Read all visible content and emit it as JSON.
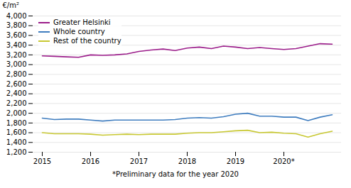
{
  "chart_data": {
    "type": "line",
    "ylabel": "€/m²",
    "annotations": [
      "*Preliminary data for the year 2020"
    ],
    "categories": [
      "2015",
      null,
      null,
      null,
      "2016",
      null,
      null,
      null,
      "2017",
      null,
      null,
      null,
      "2018",
      null,
      null,
      null,
      "2019",
      null,
      null,
      null,
      "2020*",
      null,
      null,
      null,
      null
    ],
    "series": [
      {
        "name": "Greater Helsinki",
        "color": "#9B1D8A",
        "values": [
          3180,
          3170,
          3160,
          3150,
          3200,
          3190,
          3200,
          3220,
          3270,
          3300,
          3320,
          3290,
          3340,
          3360,
          3330,
          3380,
          3360,
          3330,
          3350,
          3330,
          3310,
          3330,
          3380,
          3430,
          3420
        ]
      },
      {
        "name": "Whole country",
        "color": "#3F7DBF",
        "values": [
          1900,
          1870,
          1880,
          1880,
          1860,
          1840,
          1860,
          1860,
          1860,
          1860,
          1860,
          1870,
          1900,
          1910,
          1900,
          1930,
          1980,
          2000,
          1940,
          1940,
          1920,
          1920,
          1850,
          1920,
          1970
        ]
      },
      {
        "name": "Rest of the country",
        "color": "#C8C832",
        "values": [
          1600,
          1580,
          1580,
          1580,
          1570,
          1550,
          1560,
          1570,
          1560,
          1570,
          1570,
          1570,
          1590,
          1600,
          1600,
          1620,
          1640,
          1650,
          1600,
          1610,
          1590,
          1580,
          1510,
          1580,
          1630
        ]
      }
    ],
    "ylim": [
      1200,
      4000
    ],
    "yticks": [
      1200,
      1400,
      1600,
      1800,
      2000,
      2200,
      2400,
      2600,
      2800,
      3000,
      3200,
      3400,
      3600,
      3800,
      4000
    ],
    "grid": true,
    "legend": "upper left"
  }
}
